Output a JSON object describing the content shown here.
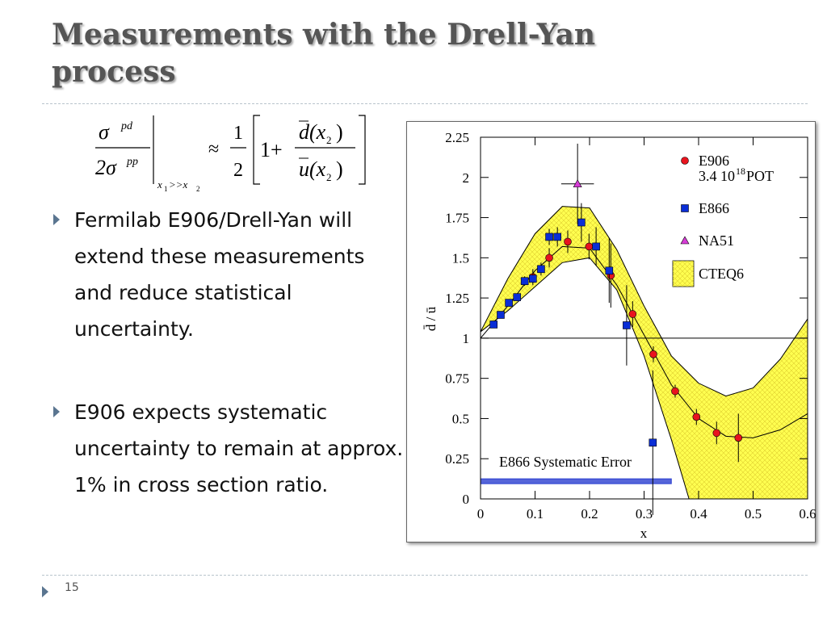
{
  "slide": {
    "title": "Measurements with the Drell-Yan process",
    "formula": [
      "σ",
      "pd",
      "2σ",
      "pp",
      "x",
      "1",
      ">>x",
      "2",
      "≈",
      "1",
      "2",
      "1+",
      "d",
      "(x",
      "2",
      ")",
      "u",
      "(x",
      "2",
      ")"
    ],
    "bullets": [
      "Fermilab E906/Drell-Yan will extend these measurements and reduce statistical uncertainty.",
      "E906 expects systematic uncertainty to remain at approx. 1% in cross section ratio."
    ],
    "page_number": "15"
  },
  "chart_data": {
    "type": "scatter",
    "x_label": "x",
    "y_label": "d̄ / ū",
    "xlim": [
      0,
      0.6
    ],
    "xticks": [
      0,
      0.1,
      0.2,
      0.3,
      0.4,
      0.5,
      0.6
    ],
    "ylim": [
      0,
      2.25
    ],
    "yticks": [
      0,
      0.25,
      0.5,
      0.75,
      1,
      1.25,
      1.5,
      1.75,
      2,
      2.25
    ],
    "hline": 1,
    "series": [
      {
        "name": "E906",
        "color": "#e8141e",
        "marker": "circle",
        "legend_note": [
          "3.4 10",
          "18",
          " POT"
        ],
        "x": [
          0.096,
          0.126,
          0.16,
          0.199,
          0.239,
          0.279,
          0.317,
          0.357,
          0.396,
          0.433,
          0.473
        ],
        "values": [
          1.38,
          1.5,
          1.6,
          1.57,
          1.39,
          1.15,
          0.9,
          0.67,
          0.51,
          0.41,
          0.38
        ],
        "errors": [
          0.05,
          0.06,
          0.07,
          0.08,
          0.2,
          0.08,
          0.05,
          0.04,
          0.05,
          0.07,
          0.15
        ]
      },
      {
        "name": "E866",
        "color": "#0a2ed6",
        "marker": "square",
        "x": [
          0.024,
          0.037,
          0.052,
          0.067,
          0.081,
          0.096,
          0.111,
          0.126,
          0.141,
          0.185,
          0.212,
          0.236,
          0.268,
          0.316
        ],
        "values": [
          1.085,
          1.145,
          1.22,
          1.255,
          1.355,
          1.37,
          1.43,
          1.63,
          1.63,
          1.72,
          1.57,
          1.42,
          1.08,
          0.35
        ],
        "errors": [
          0.02,
          0.02,
          0.02,
          0.02,
          0.03,
          0.03,
          0.04,
          0.05,
          0.06,
          0.12,
          0.12,
          0.2,
          0.25,
          0.45
        ]
      },
      {
        "name": "NA51",
        "color": "#d63cd6",
        "marker": "triangle",
        "x": [
          0.178
        ],
        "values": [
          1.96
        ],
        "errors": [
          0.25
        ],
        "x_errors": [
          0.03
        ]
      }
    ],
    "band": {
      "name": "CTEQ6",
      "color": "#ffff50",
      "x": [
        0,
        0.05,
        0.1,
        0.15,
        0.2,
        0.25,
        0.3,
        0.35,
        0.4,
        0.45,
        0.5,
        0.55,
        0.6
      ],
      "upper": [
        1.04,
        1.37,
        1.65,
        1.82,
        1.81,
        1.55,
        1.2,
        0.89,
        0.72,
        0.64,
        0.69,
        0.87,
        1.12
      ],
      "lower": [
        1.04,
        1.17,
        1.32,
        1.47,
        1.5,
        1.3,
        0.89,
        0.37,
        -0.2,
        -0.4,
        -0.4,
        -0.25,
        0
      ]
    },
    "curve": {
      "color": "#000000",
      "x": [
        0,
        0.05,
        0.1,
        0.15,
        0.2,
        0.25,
        0.3,
        0.35,
        0.4,
        0.45,
        0.5,
        0.55,
        0.6
      ],
      "values": [
        1,
        1.2,
        1.42,
        1.57,
        1.56,
        1.33,
        1.02,
        0.71,
        0.5,
        0.39,
        0.38,
        0.43,
        0.53
      ]
    },
    "systematic": {
      "label": "E866 Systematic Error",
      "color": "#2a3fd0",
      "x": [
        0,
        0.35
      ],
      "values": [
        0.11,
        0.11
      ],
      "errors": [
        0.015,
        0.015
      ]
    }
  }
}
